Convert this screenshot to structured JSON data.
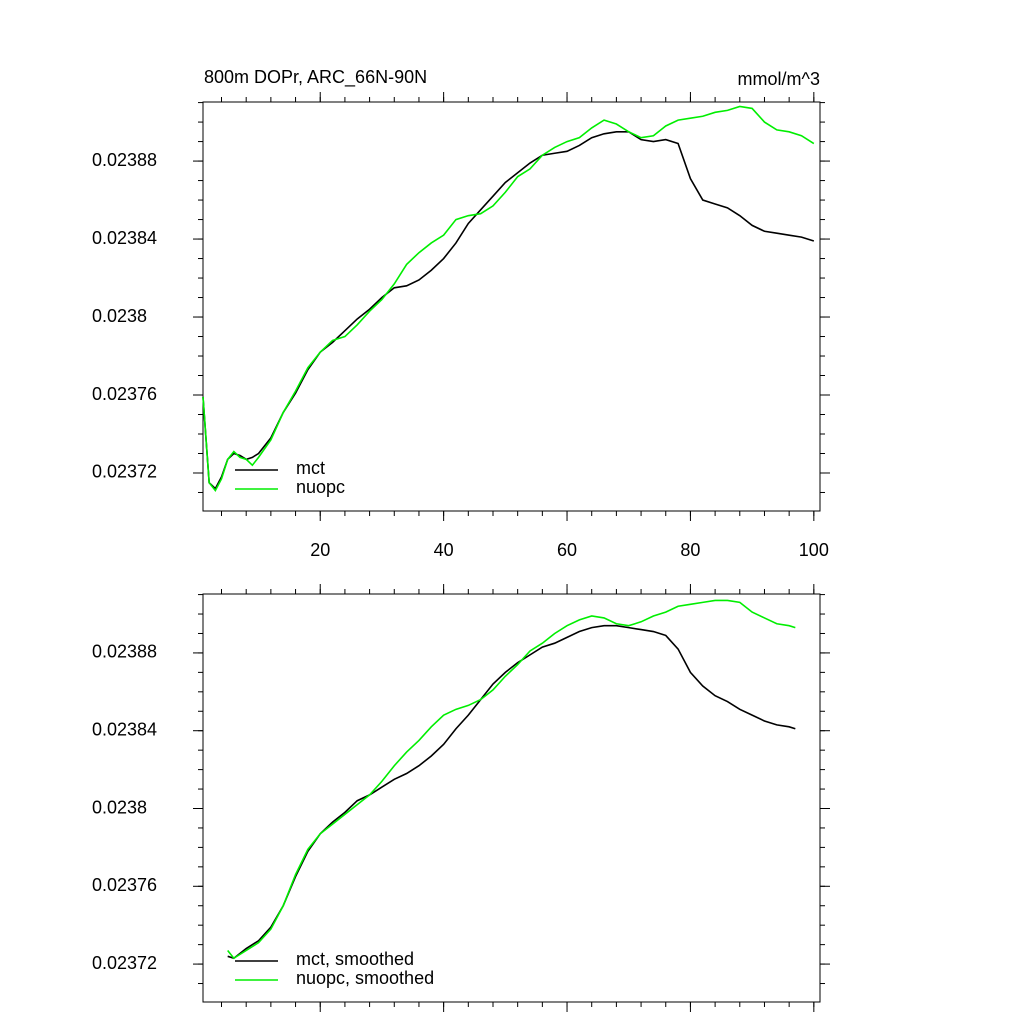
{
  "chart_data": [
    {
      "type": "line",
      "title": "800m DOPr, ARC_66N-90N",
      "units": "mmol/m^3",
      "x": [
        1,
        2,
        3,
        4,
        5,
        6,
        7,
        8,
        9,
        10,
        12,
        14,
        16,
        18,
        20,
        22,
        24,
        26,
        28,
        30,
        32,
        34,
        36,
        38,
        40,
        42,
        44,
        46,
        48,
        50,
        52,
        54,
        56,
        58,
        60,
        62,
        64,
        66,
        68,
        70,
        72,
        74,
        76,
        78,
        80,
        82,
        84,
        86,
        88,
        90,
        92,
        94,
        96,
        98,
        100
      ],
      "series": [
        {
          "name": "mct",
          "color": "#000000",
          "values": [
            0.023759,
            0.023715,
            0.023712,
            0.023718,
            0.023727,
            0.02373,
            0.023729,
            0.023727,
            0.023728,
            0.02373,
            0.023738,
            0.023751,
            0.023761,
            0.023773,
            0.023782,
            0.023787,
            0.023793,
            0.023799,
            0.023804,
            0.02381,
            0.023815,
            0.023816,
            0.023819,
            0.023824,
            0.02383,
            0.023838,
            0.023848,
            0.023855,
            0.023862,
            0.023869,
            0.023874,
            0.023879,
            0.023883,
            0.023884,
            0.023885,
            0.023888,
            0.023892,
            0.023894,
            0.023895,
            0.023895,
            0.023891,
            0.02389,
            0.023891,
            0.023889,
            0.023871,
            0.02386,
            0.023858,
            0.023856,
            0.023852,
            0.023847,
            0.023844,
            0.023843,
            0.023842,
            0.023841,
            0.023839
          ]
        },
        {
          "name": "nuopc",
          "color": "#00ee00",
          "values": [
            0.023759,
            0.023715,
            0.023711,
            0.023717,
            0.023727,
            0.023731,
            0.023728,
            0.023727,
            0.023724,
            0.023728,
            0.023737,
            0.023751,
            0.023762,
            0.023774,
            0.023782,
            0.023788,
            0.02379,
            0.023796,
            0.023803,
            0.023809,
            0.023817,
            0.023827,
            0.023833,
            0.023838,
            0.023842,
            0.02385,
            0.023852,
            0.023853,
            0.023857,
            0.023864,
            0.023872,
            0.023876,
            0.023883,
            0.023887,
            0.02389,
            0.023892,
            0.023897,
            0.023901,
            0.023899,
            0.023895,
            0.023892,
            0.023893,
            0.023898,
            0.023901,
            0.023902,
            0.023903,
            0.023905,
            0.023906,
            0.023908,
            0.023907,
            0.0239,
            0.023896,
            0.023895,
            0.023893,
            0.023889
          ]
        }
      ],
      "xlim": [
        1,
        101
      ],
      "xticks": [
        20,
        40,
        60,
        80,
        100
      ],
      "ylim": [
        0.0237005,
        0.0239103
      ],
      "yticks": [
        0.02372,
        0.02376,
        0.0238,
        0.02384,
        0.02388
      ],
      "legend": "lower left"
    },
    {
      "type": "line",
      "x": [
        5,
        6,
        8,
        10,
        12,
        14,
        16,
        18,
        20,
        22,
        24,
        26,
        28,
        30,
        32,
        34,
        36,
        38,
        40,
        42,
        44,
        46,
        48,
        50,
        52,
        54,
        56,
        58,
        60,
        62,
        64,
        66,
        68,
        70,
        72,
        74,
        76,
        78,
        80,
        82,
        84,
        86,
        88,
        90,
        92,
        94,
        96,
        97
      ],
      "series": [
        {
          "name": "mct, smoothed",
          "color": "#000000",
          "values": [
            0.023724,
            0.023723,
            0.023728,
            0.023732,
            0.023739,
            0.02375,
            0.023765,
            0.023778,
            0.023787,
            0.023793,
            0.023798,
            0.023804,
            0.023807,
            0.023811,
            0.023815,
            0.023818,
            0.023822,
            0.023827,
            0.023833,
            0.023841,
            0.023848,
            0.023856,
            0.023864,
            0.02387,
            0.023875,
            0.023879,
            0.023883,
            0.023885,
            0.023888,
            0.023891,
            0.023893,
            0.023894,
            0.023894,
            0.023893,
            0.023892,
            0.023891,
            0.023889,
            0.023882,
            0.02387,
            0.023863,
            0.023858,
            0.023855,
            0.023851,
            0.023848,
            0.023845,
            0.023843,
            0.023842,
            0.023841
          ]
        },
        {
          "name": "nuopc, smoothed",
          "color": "#00ee00",
          "values": [
            0.023727,
            0.023723,
            0.023727,
            0.023731,
            0.023738,
            0.02375,
            0.023766,
            0.023779,
            0.023787,
            0.023792,
            0.023797,
            0.023802,
            0.023807,
            0.023814,
            0.023822,
            0.023829,
            0.023835,
            0.023842,
            0.023848,
            0.023851,
            0.023853,
            0.023856,
            0.023861,
            0.023868,
            0.023874,
            0.023881,
            0.023885,
            0.02389,
            0.023894,
            0.023897,
            0.023899,
            0.023898,
            0.023895,
            0.023894,
            0.023896,
            0.023899,
            0.023901,
            0.023904,
            0.023905,
            0.023906,
            0.023907,
            0.023907,
            0.023906,
            0.023901,
            0.023898,
            0.023895,
            0.023894,
            0.023893
          ]
        }
      ],
      "xlim": [
        1,
        101
      ],
      "xticks": [
        20,
        40,
        60,
        80,
        100
      ],
      "ylim": [
        0.0237005,
        0.0239103
      ],
      "yticks": [
        0.02372,
        0.02376,
        0.0238,
        0.02384,
        0.02388
      ],
      "legend": "lower left"
    }
  ]
}
